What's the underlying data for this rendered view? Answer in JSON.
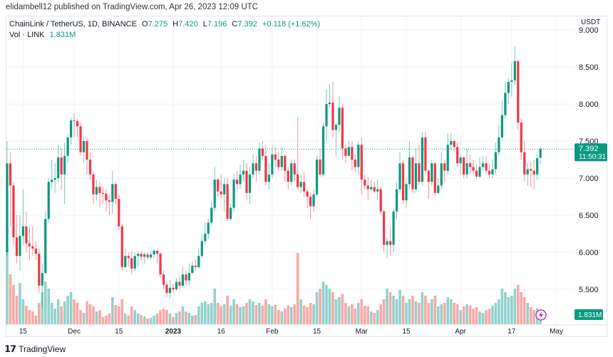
{
  "publisher_line": "elidambell12 published on TradingView.com, Apr 26, 2023 12:09 UTC",
  "legend": {
    "symbol": "ChainLink / TetherUS, 1D, BINANCE",
    "o_label": "O",
    "o": "7.275",
    "h_label": "H",
    "h": "7.420",
    "l_label": "L",
    "l": "7.196",
    "c_label": "C",
    "c": "7.392",
    "change": "+0.118 (+1.62%)",
    "vol_label": "Vol · LINK",
    "vol": "1.831M"
  },
  "price_axis": {
    "currency": "USDT",
    "last_price": "7.392",
    "countdown": "11:50:31",
    "last_volume": "1.831M"
  },
  "brand": {
    "name": "TradingView",
    "logo_text": "17"
  },
  "colors": {
    "up": "#089981",
    "down": "#F23645",
    "vol_up": "#92D2CC",
    "vol_down": "#F7A9A7",
    "last_line": "#089981",
    "lightning": "#9C27B0"
  },
  "icons": {
    "lightning": "lightning-icon"
  },
  "chart_data": {
    "type": "candlestick",
    "title": "ChainLink / TetherUS, 1D, BINANCE",
    "ylabel": "USDT",
    "ylim": [
      5.2,
      9.2
    ],
    "grid": true,
    "y_ticks": [
      "9.000",
      "8.500",
      "8.000",
      "7.500",
      "7.000",
      "6.500",
      "6.000",
      "5.500"
    ],
    "x_ticks": [
      {
        "label": "15",
        "date": "Nov 15"
      },
      {
        "label": "Dec",
        "date": "Dec 1"
      },
      {
        "label": "15",
        "date": "Dec 15"
      },
      {
        "label": "2023",
        "date": "Jan 1",
        "bold": true
      },
      {
        "label": "16",
        "date": "Jan 16"
      },
      {
        "label": "Feb",
        "date": "Feb 1"
      },
      {
        "label": "15",
        "date": "Feb 15"
      },
      {
        "label": "Mar",
        "date": "Mar 1"
      },
      {
        "label": "15",
        "date": "Mar 15"
      },
      {
        "label": "Apr",
        "date": "Apr 1"
      },
      {
        "label": "17",
        "date": "Apr 17"
      },
      {
        "label": "May",
        "date": "May 1"
      }
    ],
    "columns": [
      "date",
      "open",
      "high",
      "low",
      "close",
      "volume_M"
    ],
    "candles": [
      [
        "Nov 10",
        6.0,
        7.5,
        5.95,
        7.2,
        10.5
      ],
      [
        "Nov 11",
        7.2,
        7.35,
        6.35,
        6.9,
        7.0
      ],
      [
        "Nov 12",
        6.9,
        6.95,
        6.1,
        6.2,
        5.5
      ],
      [
        "Nov 13",
        6.2,
        6.5,
        5.85,
        5.95,
        4.0
      ],
      [
        "Nov 14",
        5.95,
        6.5,
        5.75,
        6.22,
        5.8
      ],
      [
        "Nov 15",
        6.22,
        6.85,
        6.1,
        6.35,
        3.5
      ],
      [
        "Nov 16",
        6.35,
        6.55,
        6.0,
        6.12,
        2.6
      ],
      [
        "Nov 17",
        6.12,
        6.35,
        5.9,
        6.08,
        2.0
      ],
      [
        "Nov 18",
        6.08,
        6.35,
        5.95,
        6.05,
        1.8
      ],
      [
        "Nov 19",
        6.05,
        6.15,
        5.9,
        5.98,
        1.2
      ],
      [
        "Nov 20",
        5.98,
        6.05,
        5.45,
        5.55,
        3.0
      ],
      [
        "Nov 21",
        5.55,
        5.85,
        5.25,
        5.72,
        4.5
      ],
      [
        "Nov 22",
        5.72,
        6.55,
        5.7,
        6.45,
        6.0
      ],
      [
        "Nov 23",
        6.45,
        7.0,
        6.4,
        6.95,
        5.0
      ],
      [
        "Nov 24",
        6.95,
        7.25,
        6.85,
        6.98,
        3.0
      ],
      [
        "Nov 25",
        6.98,
        7.2,
        6.8,
        7.0,
        2.2
      ],
      [
        "Nov 26",
        7.0,
        7.45,
        6.95,
        7.28,
        3.5
      ],
      [
        "Nov 27",
        7.28,
        7.4,
        6.85,
        7.05,
        2.5
      ],
      [
        "Nov 28",
        7.05,
        7.48,
        6.65,
        7.3,
        3.2
      ],
      [
        "Nov 29",
        7.3,
        7.6,
        7.2,
        7.55,
        4.0
      ],
      [
        "Nov 30",
        7.55,
        7.82,
        7.45,
        7.78,
        4.5
      ],
      [
        "Dec 1",
        7.78,
        7.88,
        7.55,
        7.77,
        3.5
      ],
      [
        "Dec 2",
        7.77,
        7.8,
        7.55,
        7.7,
        3.0
      ],
      [
        "Dec 3",
        7.7,
        7.75,
        7.3,
        7.35,
        2.0
      ],
      [
        "Dec 4",
        7.35,
        7.55,
        7.2,
        7.5,
        1.6
      ],
      [
        "Dec 5",
        7.5,
        7.55,
        7.05,
        7.25,
        3.2
      ],
      [
        "Dec 6",
        7.25,
        7.35,
        6.98,
        7.05,
        2.8
      ],
      [
        "Dec 7",
        7.05,
        7.08,
        6.65,
        6.78,
        2.5
      ],
      [
        "Dec 8",
        6.78,
        6.98,
        6.7,
        6.88,
        1.8
      ],
      [
        "Dec 9",
        6.88,
        6.95,
        6.6,
        6.8,
        2.0
      ],
      [
        "Dec 10",
        6.8,
        6.88,
        6.65,
        6.79,
        1.0
      ],
      [
        "Dec 11",
        6.79,
        6.85,
        6.55,
        6.7,
        1.2
      ],
      [
        "Dec 12",
        6.7,
        6.78,
        6.5,
        6.68,
        1.5
      ],
      [
        "Dec 13",
        6.68,
        7.1,
        6.52,
        6.92,
        3.8
      ],
      [
        "Dec 14",
        6.92,
        6.95,
        6.65,
        6.72,
        2.7
      ],
      [
        "Dec 15",
        6.72,
        6.78,
        6.3,
        6.35,
        2.5
      ],
      [
        "Dec 16",
        6.35,
        6.38,
        5.75,
        5.8,
        3.5
      ],
      [
        "Dec 17",
        5.8,
        6.05,
        5.78,
        5.95,
        1.5
      ],
      [
        "Dec 18",
        5.95,
        6.0,
        5.8,
        5.92,
        1.2
      ],
      [
        "Dec 19",
        5.92,
        6.02,
        5.7,
        5.78,
        2.5
      ],
      [
        "Dec 20",
        5.78,
        6.0,
        5.75,
        5.95,
        2.0
      ],
      [
        "Dec 21",
        5.95,
        6.02,
        5.8,
        5.98,
        1.5
      ],
      [
        "Dec 22",
        5.98,
        6.02,
        5.88,
        5.94,
        1.3
      ],
      [
        "Dec 23",
        5.94,
        6.0,
        5.85,
        5.97,
        1.1
      ],
      [
        "Dec 24",
        5.97,
        6.0,
        5.9,
        5.93,
        0.8
      ],
      [
        "Dec 25",
        5.93,
        6.02,
        5.9,
        5.97,
        0.9
      ],
      [
        "Dec 26",
        5.97,
        6.04,
        5.92,
        6.02,
        1.2
      ],
      [
        "Dec 27",
        6.02,
        6.03,
        5.85,
        5.98,
        1.5
      ],
      [
        "Dec 28",
        5.98,
        6.0,
        5.65,
        5.7,
        2.0
      ],
      [
        "Dec 29",
        5.7,
        5.75,
        5.5,
        5.56,
        2.2
      ],
      [
        "Dec 30",
        5.56,
        5.6,
        5.4,
        5.45,
        2.0
      ],
      [
        "Dec 31",
        5.45,
        5.62,
        5.38,
        5.52,
        1.5
      ],
      [
        "Jan 1",
        5.52,
        5.58,
        5.45,
        5.5,
        1.0
      ],
      [
        "Jan 2",
        5.5,
        5.65,
        5.48,
        5.6,
        1.6
      ],
      [
        "Jan 3",
        5.6,
        5.68,
        5.5,
        5.55,
        1.8
      ],
      [
        "Jan 4",
        5.55,
        5.8,
        5.53,
        5.7,
        2.5
      ],
      [
        "Jan 5",
        5.7,
        5.75,
        5.55,
        5.62,
        1.8
      ],
      [
        "Jan 6",
        5.62,
        5.85,
        5.55,
        5.72,
        1.6
      ],
      [
        "Jan 7",
        5.72,
        5.88,
        5.7,
        5.82,
        1.2
      ],
      [
        "Jan 8",
        5.82,
        5.9,
        5.75,
        5.8,
        1.3
      ],
      [
        "Jan 9",
        5.8,
        6.05,
        5.78,
        5.95,
        2.5
      ],
      [
        "Jan 10",
        5.95,
        6.25,
        5.92,
        6.15,
        3.0
      ],
      [
        "Jan 11",
        6.15,
        6.4,
        6.1,
        6.25,
        3.2
      ],
      [
        "Jan 12",
        6.25,
        6.45,
        6.18,
        6.4,
        2.8
      ],
      [
        "Jan 13",
        6.4,
        6.68,
        6.35,
        6.6,
        3.0
      ],
      [
        "Jan 14",
        6.6,
        7.15,
        6.55,
        6.98,
        5.0
      ],
      [
        "Jan 15",
        6.98,
        7.0,
        6.75,
        6.82,
        3.0
      ],
      [
        "Jan 16",
        6.82,
        7.05,
        6.72,
        6.78,
        2.5
      ],
      [
        "Jan 17",
        6.78,
        7.0,
        6.55,
        6.92,
        2.8
      ],
      [
        "Jan 18",
        6.92,
        7.0,
        6.42,
        6.45,
        4.0
      ],
      [
        "Jan 19",
        6.45,
        6.65,
        6.42,
        6.6,
        2.6
      ],
      [
        "Jan 20",
        6.6,
        7.05,
        6.55,
        6.98,
        3.5
      ],
      [
        "Jan 21",
        6.98,
        7.1,
        6.85,
        6.92,
        2.8
      ],
      [
        "Jan 22",
        6.92,
        7.18,
        6.85,
        7.05,
        2.4
      ],
      [
        "Jan 23",
        7.05,
        7.25,
        6.95,
        7.1,
        2.5
      ],
      [
        "Jan 24",
        7.1,
        7.2,
        6.7,
        6.8,
        3.0
      ],
      [
        "Jan 25",
        6.8,
        7.15,
        6.65,
        7.05,
        3.5
      ],
      [
        "Jan 26",
        7.05,
        7.32,
        7.0,
        7.2,
        3.2
      ],
      [
        "Jan 27",
        7.2,
        7.3,
        6.95,
        7.1,
        2.7
      ],
      [
        "Jan 28",
        7.1,
        7.48,
        7.05,
        7.4,
        3.0
      ],
      [
        "Jan 29",
        7.4,
        7.5,
        7.25,
        7.3,
        2.6
      ],
      [
        "Jan 30",
        7.3,
        7.45,
        6.9,
        6.95,
        3.5
      ],
      [
        "Jan 31",
        6.95,
        7.2,
        6.85,
        7.05,
        2.8
      ],
      [
        "Feb 1",
        7.05,
        7.45,
        7.0,
        7.32,
        2.5
      ],
      [
        "Feb 2",
        7.32,
        7.42,
        7.15,
        7.25,
        2.7
      ],
      [
        "Feb 3",
        7.25,
        7.35,
        7.1,
        7.15,
        2.0
      ],
      [
        "Feb 4",
        7.15,
        7.42,
        7.1,
        7.3,
        1.8
      ],
      [
        "Feb 5",
        7.3,
        7.32,
        6.95,
        7.1,
        2.2
      ],
      [
        "Feb 6",
        7.1,
        7.15,
        6.85,
        6.95,
        2.6
      ],
      [
        "Feb 7",
        6.95,
        7.25,
        6.9,
        7.2,
        2.4
      ],
      [
        "Feb 8",
        7.2,
        7.25,
        6.95,
        7.05,
        2.8
      ],
      [
        "Feb 9",
        7.05,
        7.82,
        6.85,
        6.88,
        10.0
      ],
      [
        "Feb 10",
        6.88,
        7.05,
        6.8,
        6.95,
        3.5
      ],
      [
        "Feb 11",
        6.95,
        7.08,
        6.75,
        6.82,
        2.6
      ],
      [
        "Feb 12",
        6.82,
        6.85,
        6.6,
        6.75,
        2.4
      ],
      [
        "Feb 13",
        6.75,
        6.8,
        6.45,
        6.62,
        3.0
      ],
      [
        "Feb 14",
        6.62,
        6.85,
        6.55,
        6.78,
        2.8
      ],
      [
        "Feb 15",
        6.78,
        7.3,
        6.75,
        7.25,
        4.5
      ],
      [
        "Feb 16",
        7.25,
        7.4,
        7.02,
        7.05,
        5.0
      ],
      [
        "Feb 17",
        7.05,
        7.75,
        7.02,
        7.7,
        6.0
      ],
      [
        "Feb 18",
        7.7,
        8.2,
        7.5,
        8.0,
        5.5
      ],
      [
        "Feb 19",
        8.0,
        8.28,
        7.95,
        8.02,
        5.0
      ],
      [
        "Feb 20",
        8.02,
        8.3,
        7.55,
        7.65,
        4.5
      ],
      [
        "Feb 21",
        7.65,
        7.75,
        7.3,
        7.72,
        3.5
      ],
      [
        "Feb 22",
        7.72,
        8.1,
        7.62,
        7.95,
        3.8
      ],
      [
        "Feb 23",
        7.95,
        8.0,
        7.25,
        7.4,
        4.2
      ],
      [
        "Feb 24",
        7.4,
        7.45,
        7.2,
        7.3,
        3.0
      ],
      [
        "Feb 25",
        7.3,
        7.5,
        7.3,
        7.42,
        2.5
      ],
      [
        "Feb 26",
        7.42,
        7.5,
        7.1,
        7.25,
        2.8
      ],
      [
        "Feb 27",
        7.25,
        7.32,
        7.08,
        7.15,
        2.2
      ],
      [
        "Feb 28",
        7.15,
        7.5,
        7.05,
        7.45,
        3.0
      ],
      [
        "Mar 1",
        7.45,
        7.55,
        6.78,
        6.98,
        3.5
      ],
      [
        "Mar 2",
        6.98,
        7.05,
        6.85,
        6.9,
        2.6
      ],
      [
        "Mar 3",
        6.9,
        7.02,
        6.7,
        6.85,
        2.5
      ],
      [
        "Mar 4",
        6.85,
        6.98,
        6.82,
        6.88,
        1.8
      ],
      [
        "Mar 5",
        6.88,
        6.95,
        6.8,
        6.82,
        1.6
      ],
      [
        "Mar 6",
        6.82,
        6.98,
        6.7,
        6.85,
        2.0
      ],
      [
        "Mar 7",
        6.85,
        6.88,
        6.52,
        6.55,
        2.8
      ],
      [
        "Mar 8",
        6.55,
        6.58,
        6.0,
        6.1,
        3.5
      ],
      [
        "Mar 9",
        6.1,
        6.2,
        5.92,
        6.15,
        5.0
      ],
      [
        "Mar 10",
        6.15,
        6.35,
        5.95,
        6.1,
        4.5
      ],
      [
        "Mar 11",
        6.1,
        6.58,
        6.0,
        6.55,
        4.0
      ],
      [
        "Mar 12",
        6.55,
        6.95,
        6.45,
        6.85,
        3.5
      ],
      [
        "Mar 13",
        6.85,
        7.35,
        6.8,
        7.2,
        4.8
      ],
      [
        "Mar 14",
        7.2,
        7.25,
        6.65,
        6.7,
        4.0
      ],
      [
        "Mar 15",
        6.7,
        7.0,
        6.6,
        6.92,
        3.0
      ],
      [
        "Mar 16",
        6.92,
        7.5,
        6.85,
        7.28,
        3.5
      ],
      [
        "Mar 17",
        7.28,
        7.3,
        6.8,
        6.85,
        4.0
      ],
      [
        "Mar 18",
        6.85,
        7.4,
        6.8,
        7.2,
        3.2
      ],
      [
        "Mar 19",
        7.2,
        7.45,
        6.9,
        6.95,
        3.0
      ],
      [
        "Mar 20",
        6.95,
        7.62,
        6.9,
        7.55,
        4.5
      ],
      [
        "Mar 21",
        7.55,
        7.62,
        7.05,
        7.1,
        4.0
      ],
      [
        "Mar 22",
        7.1,
        7.12,
        6.72,
        6.95,
        3.0
      ],
      [
        "Mar 23",
        6.95,
        7.25,
        6.9,
        7.2,
        3.5
      ],
      [
        "Mar 24",
        7.2,
        7.22,
        6.75,
        6.8,
        4.0
      ],
      [
        "Mar 25",
        6.8,
        7.0,
        6.78,
        6.9,
        2.5
      ],
      [
        "Mar 26",
        6.9,
        7.35,
        6.85,
        7.2,
        2.8
      ],
      [
        "Mar 27",
        7.2,
        7.25,
        6.95,
        7.1,
        3.0
      ],
      [
        "Mar 28",
        7.1,
        7.6,
        7.05,
        7.45,
        3.8
      ],
      [
        "Mar 29",
        7.45,
        7.62,
        7.38,
        7.5,
        3.5
      ],
      [
        "Mar 30",
        7.5,
        7.52,
        7.35,
        7.42,
        3.0
      ],
      [
        "Mar 31",
        7.42,
        7.48,
        7.15,
        7.2,
        2.8
      ],
      [
        "Apr 1",
        7.2,
        7.32,
        7.05,
        7.28,
        2.0
      ],
      [
        "Apr 2",
        7.28,
        7.3,
        7.0,
        7.05,
        2.5
      ],
      [
        "Apr 3",
        7.05,
        7.4,
        7.0,
        7.2,
        2.8
      ],
      [
        "Apr 4",
        7.2,
        7.32,
        7.05,
        7.15,
        2.6
      ],
      [
        "Apr 5",
        7.15,
        7.25,
        7.05,
        7.1,
        2.2
      ],
      [
        "Apr 6",
        7.1,
        7.18,
        6.98,
        7.02,
        2.4
      ],
      [
        "Apr 7",
        7.02,
        7.28,
        7.0,
        7.15,
        1.8
      ],
      [
        "Apr 8",
        7.15,
        7.3,
        7.1,
        7.2,
        1.6
      ],
      [
        "Apr 9",
        7.2,
        7.3,
        7.05,
        7.1,
        2.0
      ],
      [
        "Apr 10",
        7.1,
        7.2,
        7.0,
        7.05,
        2.2
      ],
      [
        "Apr 11",
        7.05,
        7.25,
        7.0,
        7.12,
        2.6
      ],
      [
        "Apr 12",
        7.12,
        7.48,
        7.05,
        7.35,
        3.0
      ],
      [
        "Apr 13",
        7.35,
        7.72,
        7.3,
        7.55,
        3.5
      ],
      [
        "Apr 14",
        7.55,
        8.05,
        7.5,
        7.85,
        5.0
      ],
      [
        "Apr 15",
        7.85,
        8.3,
        7.8,
        8.15,
        4.5
      ],
      [
        "Apr 16",
        8.15,
        8.35,
        8.0,
        8.3,
        3.8
      ],
      [
        "Apr 17",
        8.3,
        8.55,
        8.1,
        8.32,
        4.0
      ],
      [
        "Apr 18",
        8.32,
        8.78,
        8.25,
        8.58,
        5.0
      ],
      [
        "Apr 19",
        8.58,
        8.6,
        7.65,
        7.75,
        5.5
      ],
      [
        "Apr 20",
        7.75,
        7.8,
        7.25,
        7.35,
        4.5
      ],
      [
        "Apr 21",
        7.35,
        7.5,
        6.95,
        7.05,
        3.8
      ],
      [
        "Apr 22",
        7.05,
        7.2,
        6.9,
        7.12,
        3.0
      ],
      [
        "Apr 23",
        7.12,
        7.22,
        6.88,
        7.1,
        2.4
      ],
      [
        "Apr 24",
        7.1,
        7.25,
        6.85,
        7.05,
        2.0
      ],
      [
        "Apr 25",
        7.05,
        7.32,
        6.98,
        7.27,
        2.2
      ],
      [
        "Apr 26",
        7.275,
        7.42,
        7.196,
        7.392,
        1.831
      ]
    ]
  }
}
